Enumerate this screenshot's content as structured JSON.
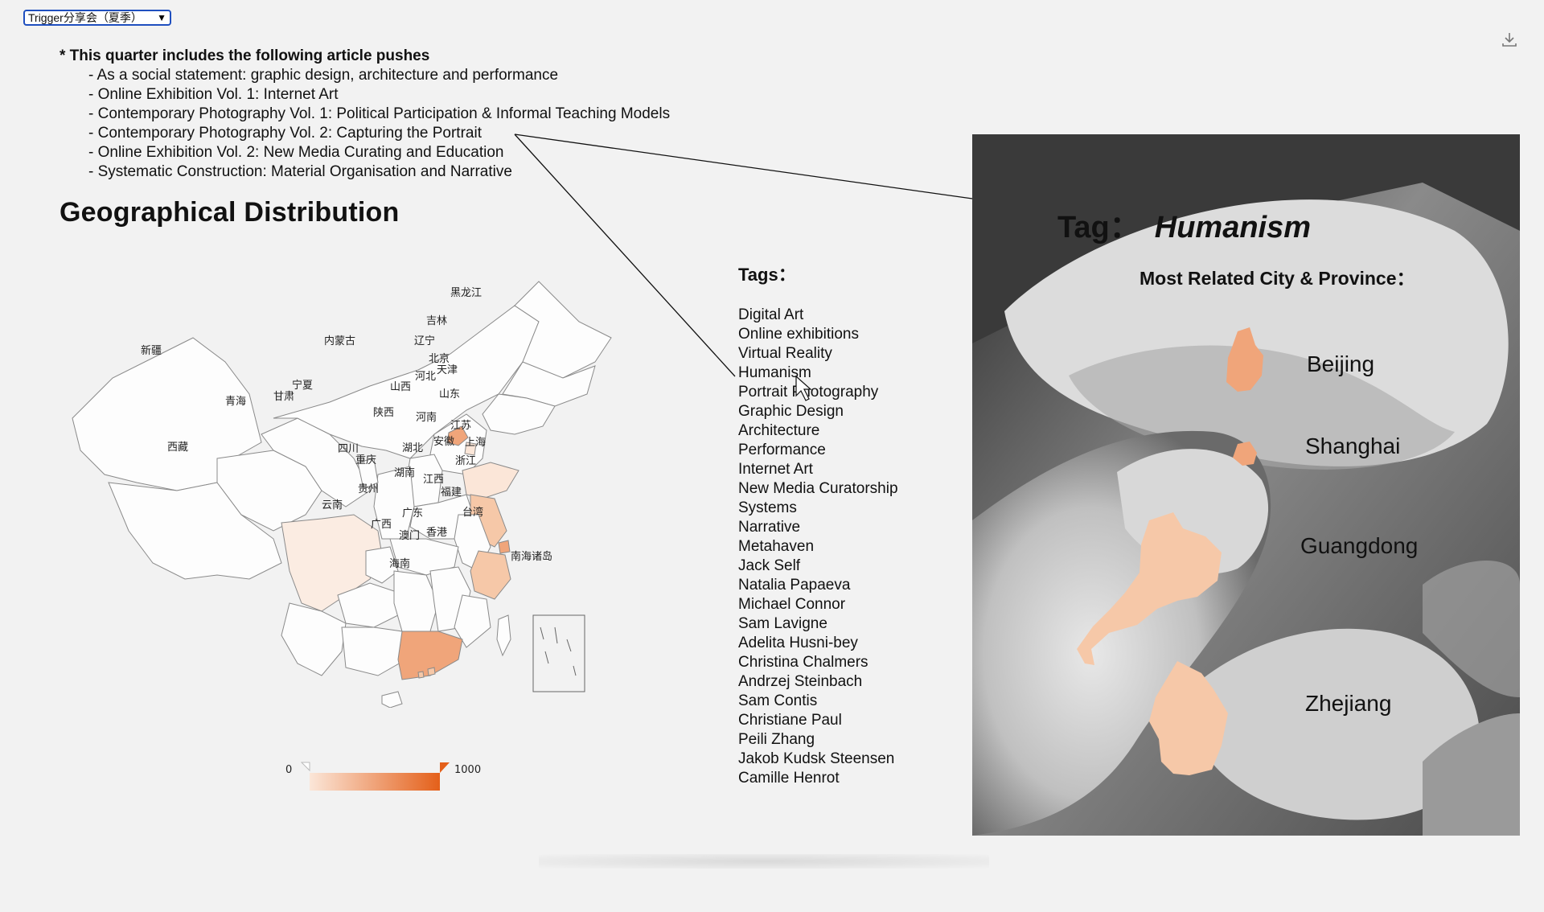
{
  "selector": {
    "value": "Trigger分享会（夏季）"
  },
  "toolbar": {
    "download_icon": "download-icon"
  },
  "articles": {
    "heading": "* This quarter includes the following article pushes",
    "items": [
      "- As a social statement: graphic design, architecture and performance",
      "- Online Exhibition Vol. 1: Internet Art",
      "- Contemporary Photography Vol. 1: Political Participation & Informal Teaching Models",
      "- Contemporary Photography Vol. 2: Capturing the Portrait",
      "- Online Exhibition Vol. 2: New Media Curating and Education",
      "- Systematic Construction: Material Organisation and Narrative"
    ]
  },
  "geo": {
    "title": "Geographical Distribution",
    "provinces": [
      "新疆",
      "西藏",
      "青海",
      "甘肃",
      "宁夏",
      "内蒙古",
      "黑龙江",
      "吉林",
      "辽宁",
      "北京",
      "天津",
      "河北",
      "山西",
      "陕西",
      "山东",
      "河南",
      "四川",
      "重庆",
      "湖北",
      "安徽",
      "江苏",
      "上海",
      "浙江",
      "贵州",
      "湖南",
      "江西",
      "福建",
      "云南",
      "广西",
      "广东",
      "澳门",
      "香港",
      "台湾",
      "海南",
      "南海诸岛"
    ],
    "highlight_colors": {
      "high": "#f0a57a",
      "mid": "#f6c8a8",
      "low": "#fbe6d8",
      "none": "#fdfdfd"
    }
  },
  "legend": {
    "min_label": "0",
    "max_label": "1000",
    "color_low": "#fbe6d8",
    "color_high": "#e4601a"
  },
  "tags": {
    "title": "Tags：",
    "items": [
      "Digital Art",
      "Online exhibitions",
      "Virtual Reality",
      "Humanism",
      "Portrait Photography",
      "Graphic Design",
      "Architecture",
      "Performance",
      "Internet Art",
      "New Media Curatorship",
      "Systems",
      "Narrative",
      "Metahaven",
      "Jack Self",
      "Natalia Papaeva",
      "Michael Connor",
      "Sam Lavigne",
      "Adelita Husni-bey",
      "Christina Chalmers",
      "Andrzej Steinbach",
      "Sam Contis",
      "Christiane Paul",
      "Peili Zhang",
      "Jakob Kudsk Steensen",
      "Camille Henrot"
    ]
  },
  "detail": {
    "tag_label": "Tag：",
    "tag_value": "Humanism",
    "related_label": "Most Related City & Province：",
    "cities": [
      "Beijing",
      "Shanghai",
      "Guangdong",
      "Zhejiang"
    ],
    "shape_color": "#f4b99a"
  }
}
